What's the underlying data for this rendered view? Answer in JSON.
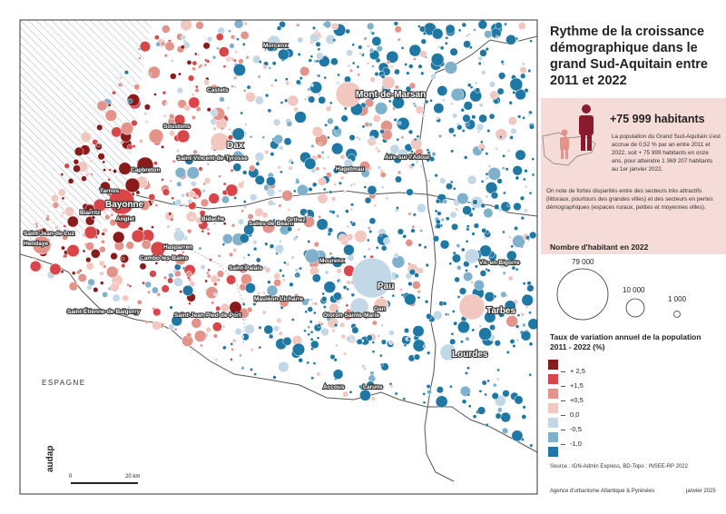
{
  "title": "Rythme de la croissance démographique dans le grand Sud-Aquitain entre 2011 et 2022",
  "callout": {
    "headline": "+75 999 habitants",
    "paragraph1": "La population du Grand Sud-Aquitain s'est accrue de 0,52 % par an entre 2011 et 2022, soit + 75 999 habitants en onze ans, pour atteindre 1 369 207 habitants au 1er janvier 2022.",
    "paragraph2": "On note de fortes disparités entre des secteurs très attractifs (littoraux, pourtours des grandes villes) et des secteurs en pertes démographiques (espaces ruraux, petites et moyennes villes)."
  },
  "size_legend": {
    "title": "Nombre d'habitant en 2022",
    "labels": [
      "79 000",
      "10 000",
      "1 000"
    ]
  },
  "color_legend": {
    "title": "Taux de variation annuel de la population 2011 - 2022 (%)",
    "classes": [
      {
        "color": "#8b1a1a"
      },
      {
        "color": "#d9464a"
      },
      {
        "color": "#e39389"
      },
      {
        "color": "#f1c7c0"
      },
      {
        "color": "#c3d8e6"
      },
      {
        "color": "#7fb0cc"
      },
      {
        "color": "#1f78a4"
      }
    ],
    "breaks": [
      "+ 2,5",
      "+1,5",
      "+0,5",
      "0,0",
      "-0,5",
      "-1,0"
    ]
  },
  "source": "Source : IGN-Admin Express, BD-Topo ; INSEE-RP 2022",
  "credit_left": "Agence d'urbanisme Atlantique & Pyrénées",
  "credit_right": "janvier 2025",
  "scale": {
    "zero": "0",
    "max": "20 km"
  },
  "logo_text": "audap",
  "country_label": "ESPAGNE",
  "places": {
    "morcenx": "Morcenx",
    "mont_de_marsan": "Mont-de-Marsan",
    "castets": "Castets",
    "soustons": "Soustons",
    "dax": "Dax",
    "saint_vincent": "Saint-Vincent-de-Tyrosse",
    "capbreton": "Capbreton",
    "hagetmau": "Hagetmau",
    "aire": "Aire-sur-l'Adour",
    "tarnos": "Tarnos",
    "bayonne": "Bayonne",
    "biarritz": "Biarritz",
    "anglet": "Anglet",
    "bidache": "Bidache",
    "salies": "Salies-de-Béarn",
    "orthez": "Orthez",
    "saint_jean_de_luz": "Saint-Jean-de-Luz",
    "hendaye": "Hendaye",
    "hasparren": "Hasparren",
    "cambo": "Cambo-les-Bains",
    "saint_palais": "Saint-Palais",
    "mourenx": "Mourenx",
    "pau": "Pau",
    "vic": "Vic-en-Bigorre",
    "mauleon": "Mauléon-Licharre",
    "saint_etienne": "Saint-Étienne-de-Baïgorry",
    "saint_jean_pied": "Saint-Jean-Pied-de-Port",
    "oloron": "Oloron-Sainte-Marie",
    "gan": "Gan",
    "tarbes": "Tarbes",
    "lourdes": "Lourdes",
    "accous": "Accous",
    "laruns": "Laruns"
  }
}
